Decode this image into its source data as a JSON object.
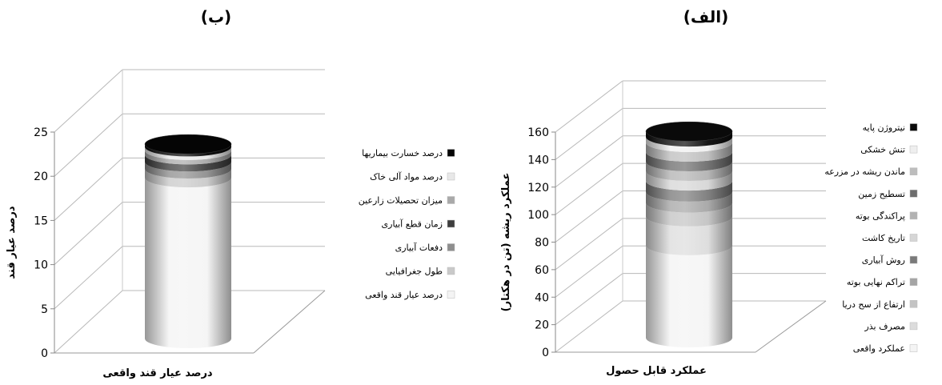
{
  "chart_data": [
    {
      "type": "bar",
      "panel_label": "(ب)",
      "category_label": "درصد عيار قند واقعی",
      "ylabel": "درصد عيار قند",
      "ylim": [
        0,
        25
      ],
      "yticks": [
        "0",
        "5",
        "10",
        "15",
        "20",
        "25"
      ],
      "stack_order": "bottom-to-top",
      "series": [
        {
          "name": "درصد عيار قند واقعی",
          "value": 18.2,
          "color": "#f4f4f4"
        },
        {
          "name": "طول جغرافيايی",
          "value": 1.0,
          "color": "#c9c9c9"
        },
        {
          "name": "دفعات آبياری",
          "value": 0.8,
          "color": "#8e8e8e"
        },
        {
          "name": "زمان قطع آبياری",
          "value": 0.8,
          "color": "#3e3e3e"
        },
        {
          "name": "ميزان تحصيلات زارعين",
          "value": 0.5,
          "color": "#a9a9a9"
        },
        {
          "name": "درصد مواد آلی خاک",
          "value": 0.4,
          "color": "#e8e8e8"
        },
        {
          "name": "درصد خسارت بيماريها",
          "value": 0.3,
          "color": "#050505"
        }
      ]
    },
    {
      "type": "bar",
      "panel_label": "(الف)",
      "category_label": "عملكرد قابل حصول",
      "ylabel": "عملكرد ريشه (تن در هكتار)",
      "ylim": [
        0,
        160
      ],
      "yticks": [
        "0",
        "20",
        "40",
        "60",
        "80",
        "100",
        "120",
        "140",
        "160"
      ],
      "stack_order": "bottom-to-top",
      "series": [
        {
          "name": "عملكرد واقعی",
          "value": 67,
          "color": "#f4f4f4"
        },
        {
          "name": "مصرف بذر",
          "value": 21,
          "color": "#dcdcdc"
        },
        {
          "name": "ارتفاع از سح دريا",
          "value": 10,
          "color": "#c3c3c3"
        },
        {
          "name": "تراكم نهايی بوته",
          "value": 8,
          "color": "#a5a5a5"
        },
        {
          "name": "روش آبياری",
          "value": 8,
          "color": "#7a7a7a"
        },
        {
          "name": "تاريخ كاشت",
          "value": 7,
          "color": "#d6d6d6"
        },
        {
          "name": "پراكندگی بوته",
          "value": 7,
          "color": "#b2b2b2"
        },
        {
          "name": "تسطيح زمين",
          "value": 7,
          "color": "#6d6d6d"
        },
        {
          "name": "ماندن ريشه در مزرعه",
          "value": 7,
          "color": "#bdbdbd"
        },
        {
          "name": "تنش خشكی",
          "value": 4,
          "color": "#efefef"
        },
        {
          "name": "نيتروژن پايه",
          "value": 4,
          "color": "#0a0a0a"
        }
      ]
    }
  ]
}
